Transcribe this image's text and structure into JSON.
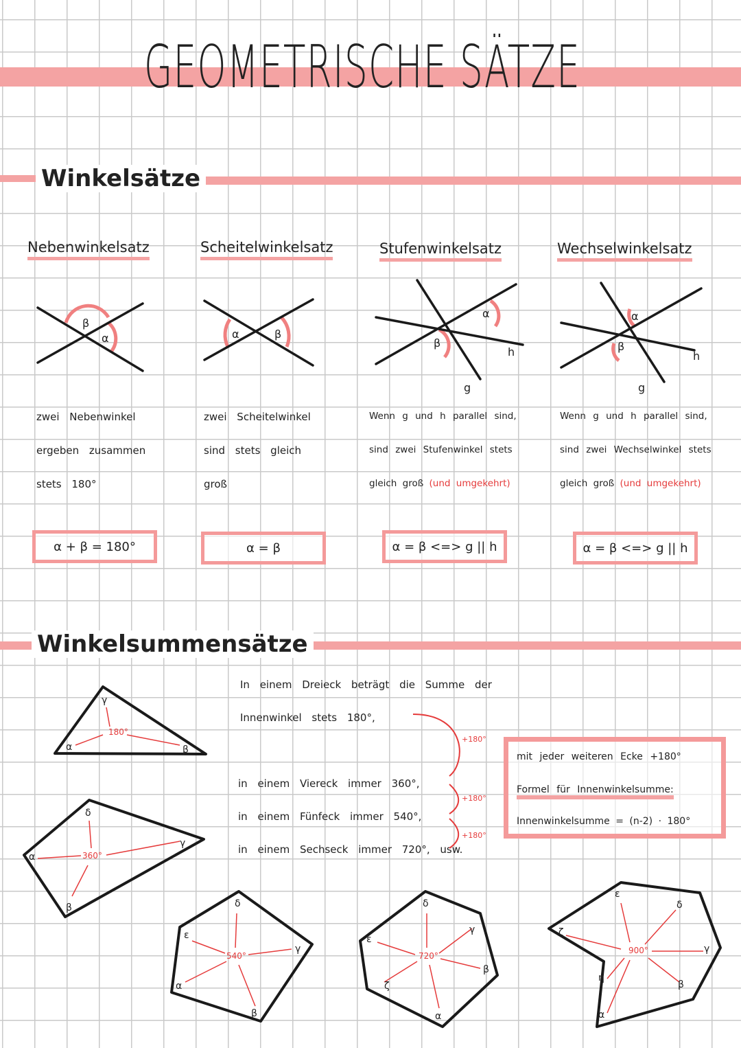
{
  "title": "GEOMETRISCHE SÄTZE",
  "sections": [
    {
      "heading": "Winkelsätze",
      "theorems": [
        {
          "name": "Nebenwinkelsatz",
          "lines": [
            "zwei Nebenwinkel",
            "ergeben zusammen",
            "stets 180°"
          ],
          "formula": "α + β = 180°",
          "labels": [
            "β",
            "α"
          ]
        },
        {
          "name": "Scheitelwinkelsatz",
          "lines": [
            "zwei Scheitelwinkel",
            "sind stets gleich",
            "groß"
          ],
          "formula": "α = β",
          "labels": [
            "α",
            "β"
          ]
        },
        {
          "name": "Stufenwinkelsatz",
          "lines": [
            "Wenn g und h parallel sind,",
            "sind zwei Stufenwinkel stets",
            "gleich groß"
          ],
          "note": "(und umgekehrt)",
          "formula": "α = β <=> g || h",
          "labels": [
            "α",
            "β",
            "h",
            "g"
          ]
        },
        {
          "name": "Wechselwinkelsatz",
          "lines": [
            "Wenn g und h parallel sind,",
            "sind zwei Wechselwinkel stets",
            "gleich groß"
          ],
          "note": "(und umgekehrt)",
          "formula": "α = β <=> g || h",
          "labels": [
            "α",
            "β",
            "h",
            "g"
          ]
        }
      ]
    },
    {
      "heading": "Winkelsummensätze",
      "text": [
        "In einem Dreieck beträgt die Summe der",
        "Innenwinkel stets 180°,",
        "in einem Viereck immer 360°,",
        "in einem Fünfeck immer 540°,",
        "in einem Sechseck immer 720°, usw."
      ],
      "steps": [
        "+180°",
        "+180°",
        "+180°"
      ],
      "box": {
        "line1": "mit jeder weiteren Ecke +180°",
        "line2": "Formel für Innenwinkelsumme:",
        "line3": "Innenwinkelsumme = (n-2) · 180°"
      },
      "shapes": [
        {
          "sum": "180°",
          "labels": [
            "γ",
            "α",
            "β"
          ]
        },
        {
          "sum": "360°",
          "labels": [
            "δ",
            "α",
            "γ",
            "β"
          ]
        },
        {
          "sum": "540°",
          "labels": [
            "δ",
            "ε",
            "γ",
            "α",
            "β"
          ]
        },
        {
          "sum": "720°",
          "labels": [
            "δ",
            "ε",
            "γ",
            "β",
            "ζ",
            "α"
          ]
        },
        {
          "sum": "900°",
          "labels": [
            "ε",
            "δ",
            "ζ",
            "γ",
            "η",
            "β",
            "α"
          ]
        }
      ]
    }
  ],
  "colors": {
    "accent": "#f4a3a3",
    "red_text": "#e53b3b",
    "ink": "#222222"
  }
}
